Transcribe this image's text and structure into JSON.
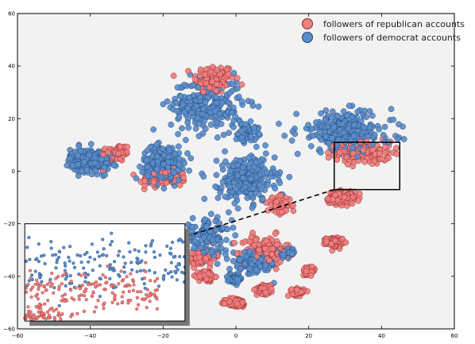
{
  "chart_data": {
    "type": "scatter",
    "title": "",
    "xlabel": "",
    "ylabel": "",
    "xlim": [
      -60,
      60
    ],
    "ylim": [
      -60,
      60
    ],
    "xticks": [
      -60,
      -40,
      -20,
      0,
      20,
      40,
      60
    ],
    "yticks": [
      -60,
      -40,
      -20,
      0,
      20,
      40,
      60
    ],
    "grid": false,
    "legend_position": "top-right",
    "background_color": "#f2f2f2",
    "series": [
      {
        "name": "followers of republican accounts",
        "color": "#f08080",
        "edge_color": "#8a1f1f",
        "clusters": [
          {
            "center": [
              -6,
              35
            ],
            "spread": [
              5,
              5
            ],
            "density": "medium"
          },
          {
            "center": [
              -33,
              7
            ],
            "spread": [
              4,
              3
            ],
            "density": "low"
          },
          {
            "center": [
              -20,
              -3
            ],
            "spread": [
              6,
              3
            ],
            "density": "low"
          },
          {
            "center": [
              35,
              7
            ],
            "spread": [
              7,
              4
            ],
            "density": "medium"
          },
          {
            "center": [
              29,
              -10
            ],
            "spread": [
              3,
              2
            ],
            "density": "high"
          },
          {
            "center": [
              27,
              -27
            ],
            "spread": [
              2,
              1.5
            ],
            "density": "medium"
          },
          {
            "center": [
              8,
              -30
            ],
            "spread": [
              6,
              5
            ],
            "density": "medium"
          },
          {
            "center": [
              -10,
              -33
            ],
            "spread": [
              4,
              3
            ],
            "density": "low"
          },
          {
            "center": [
              -8,
              -40
            ],
            "spread": [
              2,
              2
            ],
            "density": "low"
          },
          {
            "center": [
              0,
              -50
            ],
            "spread": [
              2.5,
              1.5
            ],
            "density": "medium"
          },
          {
            "center": [
              8,
              -45
            ],
            "spread": [
              2,
              1.5
            ],
            "density": "medium"
          },
          {
            "center": [
              17,
              -46
            ],
            "spread": [
              1.5,
              1.2
            ],
            "density": "low"
          },
          {
            "center": [
              20,
              -38
            ],
            "spread": [
              1.5,
              1.2
            ],
            "density": "low"
          },
          {
            "center": [
              12,
              -13
            ],
            "spread": [
              3,
              3
            ],
            "density": "low"
          }
        ]
      },
      {
        "name": "followers of democrat accounts",
        "color": "#5b8ecb",
        "edge_color": "#1e3f6e",
        "clusters": [
          {
            "center": [
              -8,
              25
            ],
            "spread": [
              9,
              9
            ],
            "density": "high"
          },
          {
            "center": [
              3,
              15
            ],
            "spread": [
              3,
              3
            ],
            "density": "low"
          },
          {
            "center": [
              -40,
              4
            ],
            "spread": [
              5,
              4
            ],
            "density": "high"
          },
          {
            "center": [
              -20,
              3
            ],
            "spread": [
              5,
              6
            ],
            "density": "high"
          },
          {
            "center": [
              3,
              -3
            ],
            "spread": [
              7,
              8
            ],
            "density": "high"
          },
          {
            "center": [
              30,
              15
            ],
            "spread": [
              12,
              7
            ],
            "density": "high"
          },
          {
            "center": [
              -8,
              -25
            ],
            "spread": [
              6,
              6
            ],
            "density": "medium"
          },
          {
            "center": [
              5,
              -35
            ],
            "spread": [
              6,
              4
            ],
            "density": "medium"
          },
          {
            "center": [
              14,
              -31
            ],
            "spread": [
              2,
              1.5
            ],
            "density": "low"
          },
          {
            "center": [
              0,
              -41
            ],
            "spread": [
              1.5,
              1.2
            ],
            "density": "low"
          }
        ]
      }
    ],
    "annotations": [
      {
        "type": "zoom-box",
        "x_range": [
          27,
          45
        ],
        "y_range": [
          -7,
          11
        ]
      },
      {
        "type": "zoom-connector",
        "from": [
          27,
          -7
        ],
        "to": [
          -14,
          -25
        ],
        "style": "dashed"
      },
      {
        "type": "inset",
        "x_range": [
          -58,
          -14
        ],
        "y_range": [
          -57,
          -20
        ],
        "zoom_of": [
          27,
          45,
          -7,
          11
        ]
      }
    ]
  }
}
